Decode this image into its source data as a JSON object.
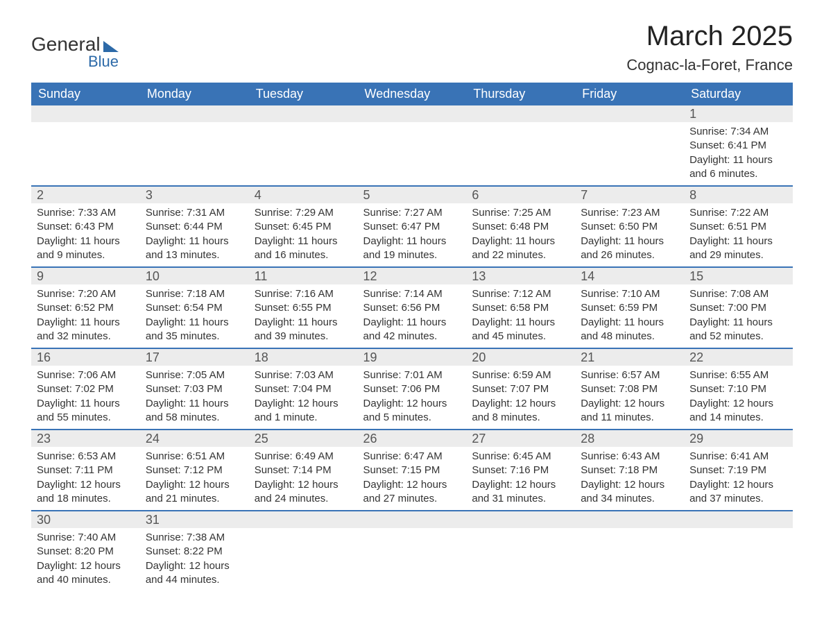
{
  "logo": {
    "line1": "General",
    "line2": "Blue"
  },
  "title": "March 2025",
  "location": "Cognac-la-Foret, France",
  "colors": {
    "header_bg": "#3973b6",
    "header_text": "#ffffff",
    "daynum_bg": "#ececec",
    "row_border": "#3973b6",
    "text": "#333333",
    "logo_accent": "#2d6aa8"
  },
  "typography": {
    "title_fontsize": 40,
    "location_fontsize": 22,
    "th_fontsize": 18,
    "body_fontsize": 15
  },
  "columns": [
    "Sunday",
    "Monday",
    "Tuesday",
    "Wednesday",
    "Thursday",
    "Friday",
    "Saturday"
  ],
  "weeks": [
    [
      null,
      null,
      null,
      null,
      null,
      null,
      {
        "n": "1",
        "sunrise": "Sunrise: 7:34 AM",
        "sunset": "Sunset: 6:41 PM",
        "daylight": "Daylight: 11 hours and 6 minutes."
      }
    ],
    [
      {
        "n": "2",
        "sunrise": "Sunrise: 7:33 AM",
        "sunset": "Sunset: 6:43 PM",
        "daylight": "Daylight: 11 hours and 9 minutes."
      },
      {
        "n": "3",
        "sunrise": "Sunrise: 7:31 AM",
        "sunset": "Sunset: 6:44 PM",
        "daylight": "Daylight: 11 hours and 13 minutes."
      },
      {
        "n": "4",
        "sunrise": "Sunrise: 7:29 AM",
        "sunset": "Sunset: 6:45 PM",
        "daylight": "Daylight: 11 hours and 16 minutes."
      },
      {
        "n": "5",
        "sunrise": "Sunrise: 7:27 AM",
        "sunset": "Sunset: 6:47 PM",
        "daylight": "Daylight: 11 hours and 19 minutes."
      },
      {
        "n": "6",
        "sunrise": "Sunrise: 7:25 AM",
        "sunset": "Sunset: 6:48 PM",
        "daylight": "Daylight: 11 hours and 22 minutes."
      },
      {
        "n": "7",
        "sunrise": "Sunrise: 7:23 AM",
        "sunset": "Sunset: 6:50 PM",
        "daylight": "Daylight: 11 hours and 26 minutes."
      },
      {
        "n": "8",
        "sunrise": "Sunrise: 7:22 AM",
        "sunset": "Sunset: 6:51 PM",
        "daylight": "Daylight: 11 hours and 29 minutes."
      }
    ],
    [
      {
        "n": "9",
        "sunrise": "Sunrise: 7:20 AM",
        "sunset": "Sunset: 6:52 PM",
        "daylight": "Daylight: 11 hours and 32 minutes."
      },
      {
        "n": "10",
        "sunrise": "Sunrise: 7:18 AM",
        "sunset": "Sunset: 6:54 PM",
        "daylight": "Daylight: 11 hours and 35 minutes."
      },
      {
        "n": "11",
        "sunrise": "Sunrise: 7:16 AM",
        "sunset": "Sunset: 6:55 PM",
        "daylight": "Daylight: 11 hours and 39 minutes."
      },
      {
        "n": "12",
        "sunrise": "Sunrise: 7:14 AM",
        "sunset": "Sunset: 6:56 PM",
        "daylight": "Daylight: 11 hours and 42 minutes."
      },
      {
        "n": "13",
        "sunrise": "Sunrise: 7:12 AM",
        "sunset": "Sunset: 6:58 PM",
        "daylight": "Daylight: 11 hours and 45 minutes."
      },
      {
        "n": "14",
        "sunrise": "Sunrise: 7:10 AM",
        "sunset": "Sunset: 6:59 PM",
        "daylight": "Daylight: 11 hours and 48 minutes."
      },
      {
        "n": "15",
        "sunrise": "Sunrise: 7:08 AM",
        "sunset": "Sunset: 7:00 PM",
        "daylight": "Daylight: 11 hours and 52 minutes."
      }
    ],
    [
      {
        "n": "16",
        "sunrise": "Sunrise: 7:06 AM",
        "sunset": "Sunset: 7:02 PM",
        "daylight": "Daylight: 11 hours and 55 minutes."
      },
      {
        "n": "17",
        "sunrise": "Sunrise: 7:05 AM",
        "sunset": "Sunset: 7:03 PM",
        "daylight": "Daylight: 11 hours and 58 minutes."
      },
      {
        "n": "18",
        "sunrise": "Sunrise: 7:03 AM",
        "sunset": "Sunset: 7:04 PM",
        "daylight": "Daylight: 12 hours and 1 minute."
      },
      {
        "n": "19",
        "sunrise": "Sunrise: 7:01 AM",
        "sunset": "Sunset: 7:06 PM",
        "daylight": "Daylight: 12 hours and 5 minutes."
      },
      {
        "n": "20",
        "sunrise": "Sunrise: 6:59 AM",
        "sunset": "Sunset: 7:07 PM",
        "daylight": "Daylight: 12 hours and 8 minutes."
      },
      {
        "n": "21",
        "sunrise": "Sunrise: 6:57 AM",
        "sunset": "Sunset: 7:08 PM",
        "daylight": "Daylight: 12 hours and 11 minutes."
      },
      {
        "n": "22",
        "sunrise": "Sunrise: 6:55 AM",
        "sunset": "Sunset: 7:10 PM",
        "daylight": "Daylight: 12 hours and 14 minutes."
      }
    ],
    [
      {
        "n": "23",
        "sunrise": "Sunrise: 6:53 AM",
        "sunset": "Sunset: 7:11 PM",
        "daylight": "Daylight: 12 hours and 18 minutes."
      },
      {
        "n": "24",
        "sunrise": "Sunrise: 6:51 AM",
        "sunset": "Sunset: 7:12 PM",
        "daylight": "Daylight: 12 hours and 21 minutes."
      },
      {
        "n": "25",
        "sunrise": "Sunrise: 6:49 AM",
        "sunset": "Sunset: 7:14 PM",
        "daylight": "Daylight: 12 hours and 24 minutes."
      },
      {
        "n": "26",
        "sunrise": "Sunrise: 6:47 AM",
        "sunset": "Sunset: 7:15 PM",
        "daylight": "Daylight: 12 hours and 27 minutes."
      },
      {
        "n": "27",
        "sunrise": "Sunrise: 6:45 AM",
        "sunset": "Sunset: 7:16 PM",
        "daylight": "Daylight: 12 hours and 31 minutes."
      },
      {
        "n": "28",
        "sunrise": "Sunrise: 6:43 AM",
        "sunset": "Sunset: 7:18 PM",
        "daylight": "Daylight: 12 hours and 34 minutes."
      },
      {
        "n": "29",
        "sunrise": "Sunrise: 6:41 AM",
        "sunset": "Sunset: 7:19 PM",
        "daylight": "Daylight: 12 hours and 37 minutes."
      }
    ],
    [
      {
        "n": "30",
        "sunrise": "Sunrise: 7:40 AM",
        "sunset": "Sunset: 8:20 PM",
        "daylight": "Daylight: 12 hours and 40 minutes."
      },
      {
        "n": "31",
        "sunrise": "Sunrise: 7:38 AM",
        "sunset": "Sunset: 8:22 PM",
        "daylight": "Daylight: 12 hours and 44 minutes."
      },
      null,
      null,
      null,
      null,
      null
    ]
  ]
}
